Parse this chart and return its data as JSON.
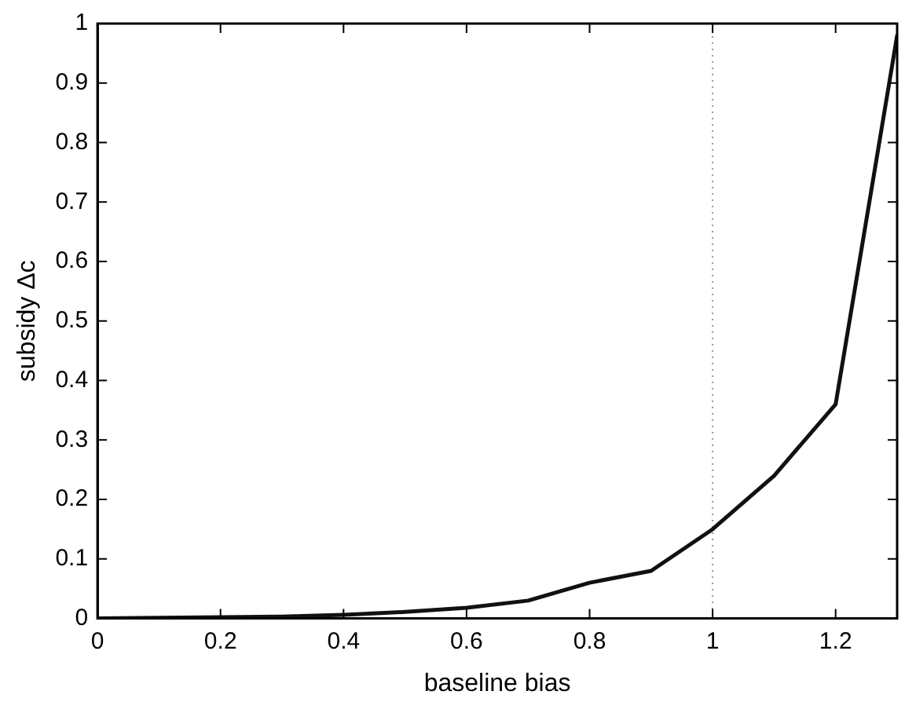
{
  "chart_data": {
    "type": "line",
    "xlabel": "baseline bias",
    "ylabel": "subsidy Δc",
    "x": [
      0,
      0.1,
      0.2,
      0.3,
      0.4,
      0.5,
      0.6,
      0.7,
      0.8,
      0.9,
      1.0,
      1.1,
      1.2,
      1.3
    ],
    "series": [
      {
        "color": "#111111",
        "values": [
          0,
          0.001,
          0.002,
          0.003,
          0.006,
          0.011,
          0.018,
          0.03,
          0.06,
          0.08,
          0.15,
          0.24,
          0.36,
          0.98
        ]
      }
    ],
    "xlim": [
      0,
      1.3
    ],
    "ylim": [
      0,
      1
    ],
    "xticks": [
      0,
      0.2,
      0.4,
      0.6,
      0.8,
      1,
      1.2
    ],
    "yticks": [
      0,
      0.1,
      0.2,
      0.3,
      0.4,
      0.5,
      0.6,
      0.7,
      0.8,
      0.9,
      1
    ],
    "ref_lines": [
      {
        "axis": "x",
        "value": 1,
        "color": "#999999",
        "line_style": "dotted"
      }
    ],
    "grid": false,
    "legend": false,
    "marker": "none",
    "line_style": "solid"
  }
}
